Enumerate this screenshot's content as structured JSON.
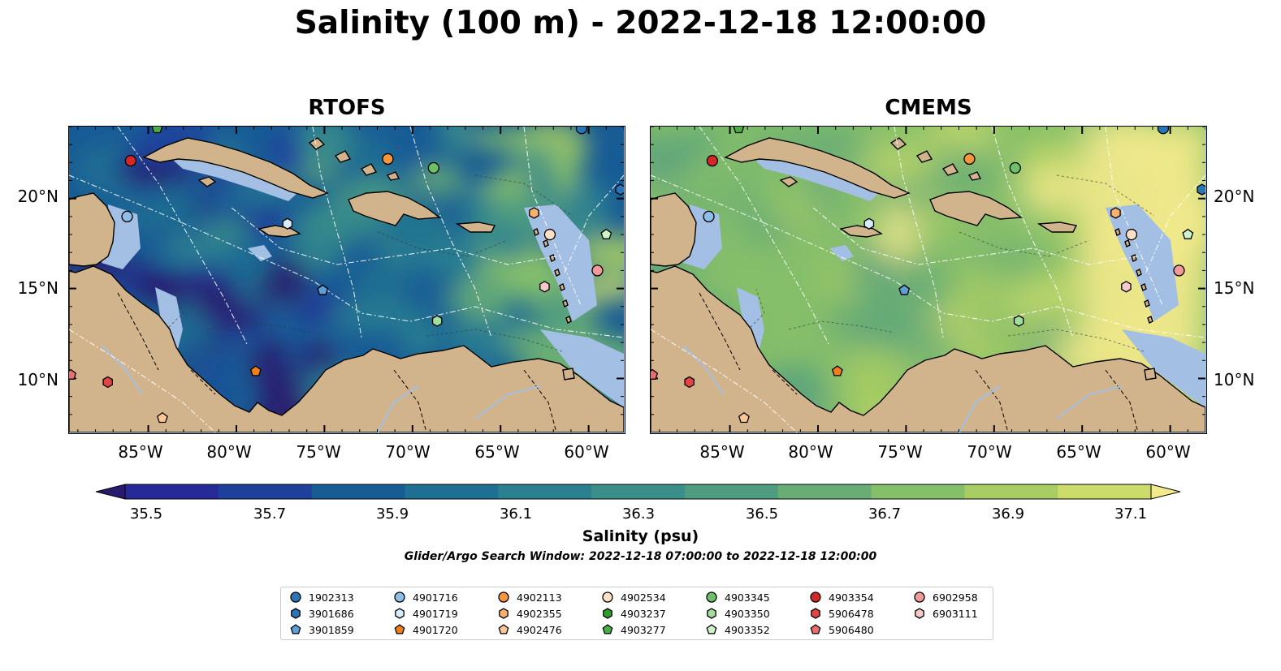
{
  "title": "Salinity (100 m) - 2022-12-18 12:00:00",
  "panels": [
    {
      "title": "RTOFS",
      "field": "rtofs"
    },
    {
      "title": "CMEMS",
      "field": "cmems"
    }
  ],
  "axes": {
    "lat_ticks": [
      "20°N",
      "15°N",
      "10°N"
    ],
    "lon_ticks": [
      "85°W",
      "80°W",
      "75°W",
      "70°W",
      "65°W",
      "60°W"
    ]
  },
  "colorbar": {
    "label": "Salinity (psu)",
    "ticks": [
      "35.5",
      "35.7",
      "35.9",
      "36.1",
      "36.3",
      "36.5",
      "36.7",
      "36.9",
      "37.1"
    ],
    "min": 35.5,
    "max": 37.1,
    "extend": "both",
    "colormap": "haline",
    "colors": [
      "#2a1a6e",
      "#262a99",
      "#1f3f9d",
      "#185c96",
      "#1e7092",
      "#2b8090",
      "#3a8f8a",
      "#4f9d80",
      "#68ad76",
      "#86bf6a",
      "#a8cd63",
      "#cbdc6b",
      "#f2e98c"
    ]
  },
  "search_window": "Glider/Argo Search Window: 2022-12-18 07:00:00 to 2022-12-18 12:00:00",
  "colors": {
    "land": "#d2b48c",
    "shelf": "#a3bfe3"
  },
  "legend": {
    "columns": [
      [
        {
          "id": "1902313",
          "marker": "circle",
          "color": "#2a74b8"
        },
        {
          "id": "3901686",
          "marker": "hexagon",
          "color": "#2a74b8"
        },
        {
          "id": "3901859",
          "marker": "pentagon",
          "color": "#5e9fd7"
        }
      ],
      [
        {
          "id": "4901716",
          "marker": "circle",
          "color": "#8ebfe8"
        },
        {
          "id": "4901719",
          "marker": "hexagon",
          "color": "#d7ebfb"
        },
        {
          "id": "4901720",
          "marker": "pentagon",
          "color": "#f07f1a"
        }
      ],
      [
        {
          "id": "4902113",
          "marker": "circle",
          "color": "#f5953c"
        },
        {
          "id": "4902355",
          "marker": "hexagon",
          "color": "#fbb06e"
        },
        {
          "id": "4902476",
          "marker": "pentagon",
          "color": "#fcc795"
        }
      ],
      [
        {
          "id": "4902534",
          "marker": "circle",
          "color": "#fde0c6"
        },
        {
          "id": "4903237",
          "marker": "hexagon",
          "color": "#2ca02c"
        },
        {
          "id": "4903277",
          "marker": "pentagon",
          "color": "#4aae46"
        }
      ],
      [
        {
          "id": "4903345",
          "marker": "circle",
          "color": "#6cc067"
        },
        {
          "id": "4903350",
          "marker": "hexagon",
          "color": "#a4dd9d"
        },
        {
          "id": "4903352",
          "marker": "pentagon",
          "color": "#cff3c8"
        }
      ],
      [
        {
          "id": "4903354",
          "marker": "circle",
          "color": "#d62728"
        },
        {
          "id": "5906478",
          "marker": "hexagon",
          "color": "#e34545"
        },
        {
          "id": "5906480",
          "marker": "pentagon",
          "color": "#ec6d6d"
        }
      ],
      [
        {
          "id": "6902958",
          "marker": "circle",
          "color": "#f19a9a"
        },
        {
          "id": "6903111",
          "marker": "hexagon",
          "color": "#f7c9c9"
        }
      ]
    ]
  },
  "map_data": {
    "extent": {
      "lon_min": -89.5,
      "lon_max": -58,
      "lat_min": 7,
      "lat_max": 24
    },
    "floats": [
      {
        "id": "4903354",
        "lon": -86.0,
        "lat": 22.1
      },
      {
        "id": "4901716",
        "lon": -86.2,
        "lat": 19.0
      },
      {
        "id": "4903277",
        "lon": -84.5,
        "lat": 23.9
      },
      {
        "id": "4901719",
        "lon": -77.1,
        "lat": 18.6
      },
      {
        "id": "3901859",
        "lon": -75.1,
        "lat": 14.9
      },
      {
        "id": "4901720",
        "lon": -78.9,
        "lat": 10.4
      },
      {
        "id": "4902476",
        "lon": -84.2,
        "lat": 7.8
      },
      {
        "id": "5906478",
        "lon": -87.3,
        "lat": 9.8
      },
      {
        "id": "5906480",
        "lon": -89.4,
        "lat": 10.2
      },
      {
        "id": "4902113",
        "lon": -71.4,
        "lat": 22.2
      },
      {
        "id": "4903345",
        "lon": -68.8,
        "lat": 21.7
      },
      {
        "id": "4902355",
        "lon": -63.1,
        "lat": 19.2
      },
      {
        "id": "4902534",
        "lon": -62.2,
        "lat": 18.0
      },
      {
        "id": "6903111",
        "lon": -62.5,
        "lat": 15.1
      },
      {
        "id": "4903350",
        "lon": -68.6,
        "lat": 13.2
      },
      {
        "id": "6902958",
        "lon": -59.5,
        "lat": 16.0
      },
      {
        "id": "4903352",
        "lon": -59.0,
        "lat": 18.0
      },
      {
        "id": "3901686",
        "lon": -58.2,
        "lat": 20.5
      },
      {
        "id": "1902313",
        "lon": -60.4,
        "lat": 23.9
      }
    ]
  }
}
